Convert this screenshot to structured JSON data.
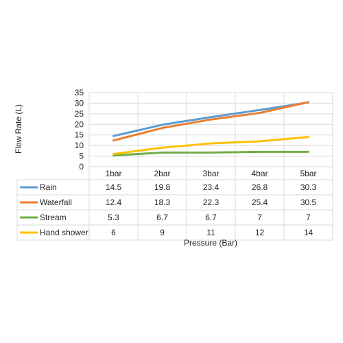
{
  "chart_data": {
    "type": "line",
    "categories": [
      "1bar",
      "2bar",
      "3bar",
      "4bar",
      "5bar"
    ],
    "series": [
      {
        "name": "Rain",
        "values": [
          14.5,
          19.8,
          23.4,
          26.8,
          30.3
        ],
        "color": "#5B9BD5"
      },
      {
        "name": "Waterfall",
        "values": [
          12.4,
          18.3,
          22.3,
          25.4,
          30.5
        ],
        "color": "#ED7D31"
      },
      {
        "name": "Stream",
        "values": [
          5.3,
          6.7,
          6.7,
          7,
          7
        ],
        "color": "#70AD47"
      },
      {
        "name": "Hand shower",
        "values": [
          6,
          9,
          11,
          12,
          14
        ],
        "color": "#FFC000"
      }
    ],
    "xlabel": "Pressure (Bar)",
    "ylabel": "Flow Rate (L)",
    "ylim": [
      0,
      35
    ],
    "yticks": [
      0,
      5,
      10,
      15,
      20,
      25,
      30,
      35
    ],
    "grid": true,
    "legend": "data-table",
    "gridColor": "#d9d9d9",
    "textColor": "#222222"
  }
}
